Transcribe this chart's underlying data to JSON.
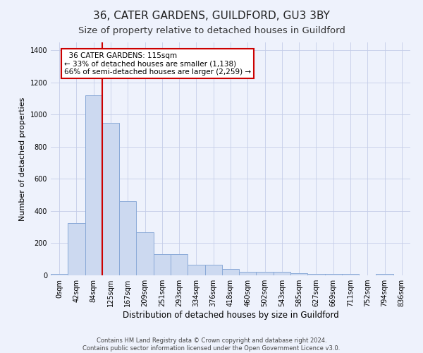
{
  "title": "36, CATER GARDENS, GUILDFORD, GU3 3BY",
  "subtitle": "Size of property relative to detached houses in Guildford",
  "xlabel": "Distribution of detached houses by size in Guildford",
  "ylabel": "Number of detached properties",
  "bin_labels": [
    "0sqm",
    "42sqm",
    "84sqm",
    "125sqm",
    "167sqm",
    "209sqm",
    "251sqm",
    "293sqm",
    "334sqm",
    "376sqm",
    "418sqm",
    "460sqm",
    "502sqm",
    "543sqm",
    "585sqm",
    "627sqm",
    "669sqm",
    "711sqm",
    "752sqm",
    "794sqm",
    "836sqm"
  ],
  "bar_heights": [
    10,
    325,
    1120,
    950,
    460,
    270,
    130,
    130,
    65,
    65,
    40,
    20,
    20,
    20,
    15,
    10,
    10,
    10,
    0,
    10,
    0
  ],
  "bar_color": "#ccd9f0",
  "bar_edge_color": "#8aaad8",
  "vline_color": "#cc0000",
  "annotation_text": "  36 CATER GARDENS: 115sqm\n← 33% of detached houses are smaller (1,138)\n66% of semi-detached houses are larger (2,259) →",
  "annotation_box_color": "#ffffff",
  "annotation_box_edge": "#cc0000",
  "ylim": [
    0,
    1450
  ],
  "yticks": [
    0,
    200,
    400,
    600,
    800,
    1000,
    1200,
    1400
  ],
  "footer_line1": "Contains HM Land Registry data © Crown copyright and database right 2024.",
  "footer_line2": "Contains public sector information licensed under the Open Government Licence v3.0.",
  "bg_color": "#eef2fc",
  "grid_color": "#c5cde8",
  "title_fontsize": 11,
  "subtitle_fontsize": 9.5,
  "xlabel_fontsize": 8.5,
  "ylabel_fontsize": 8,
  "tick_fontsize": 7,
  "annotation_fontsize": 7.5,
  "footer_fontsize": 6
}
